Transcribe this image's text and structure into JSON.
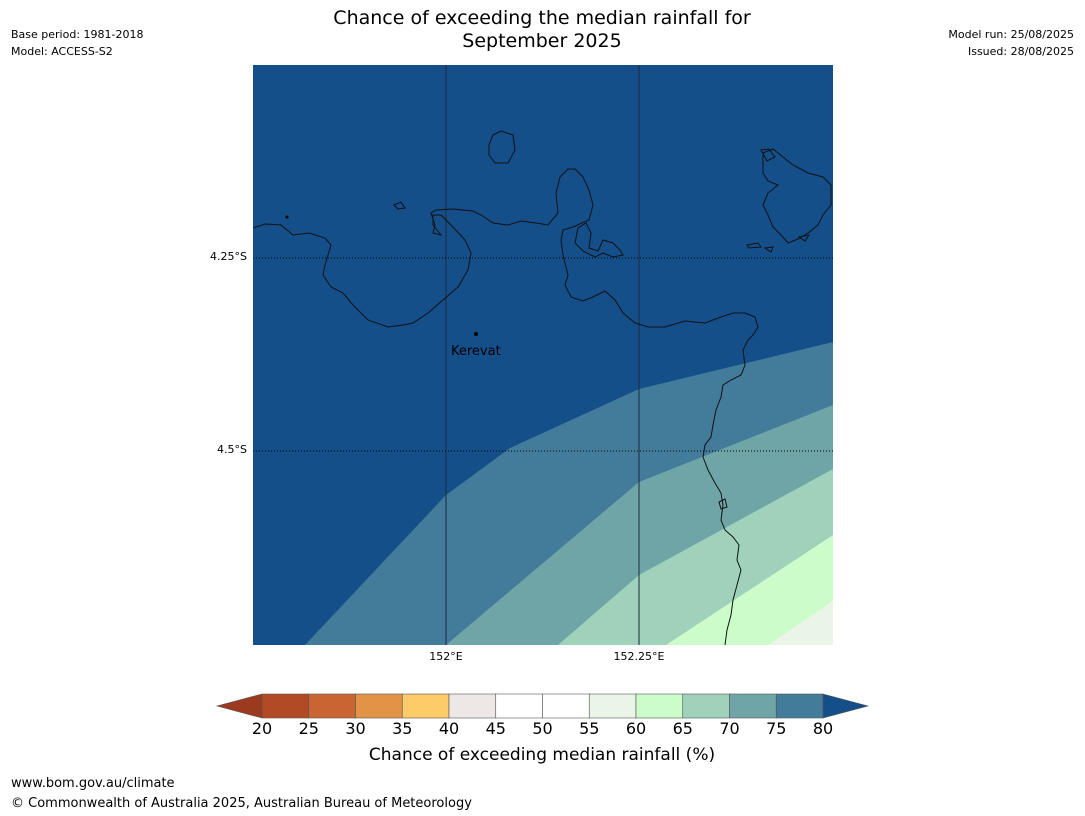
{
  "header": {
    "title_line1": "Chance of exceeding the median rainfall for",
    "title_line2": "September 2025",
    "base_period": "Base period: 1981-2018",
    "model": "Model: ACCESS-S2",
    "model_run": "Model run: 25/08/2025",
    "issued": "Issued: 28/08/2025"
  },
  "map": {
    "lat_labels": [
      "4.25°S",
      "4.5°S"
    ],
    "lon_labels": [
      "152°E",
      "152.25°E"
    ],
    "place": {
      "name": "Kerevat"
    },
    "colors": {
      "band_80": "#154f8a",
      "band_75": "#437b9a",
      "band_70": "#70a5a8",
      "band_65": "#9fd1bb",
      "band_60": "#cbfcca",
      "band_55": "#eaf5e8",
      "coast": "#111111"
    }
  },
  "colorbar": {
    "ticks": [
      "20",
      "25",
      "30",
      "35",
      "40",
      "45",
      "50",
      "55",
      "60",
      "65",
      "70",
      "75",
      "80"
    ],
    "colors": [
      "#9c3a1f",
      "#b24a25",
      "#cb6433",
      "#e29345",
      "#fdcb68",
      "#ede8e5",
      "#ffffff",
      "#ffffff",
      "#eaf5e8",
      "#cbfcca",
      "#9fd1bb",
      "#70a5a8",
      "#437b9a",
      "#154f8a"
    ],
    "label": "Chance of exceeding median rainfall (%)"
  },
  "footer": {
    "url": "www.bom.gov.au/climate",
    "copyright": "© Commonwealth of Australia 2025, Australian Bureau of Meteorology"
  }
}
